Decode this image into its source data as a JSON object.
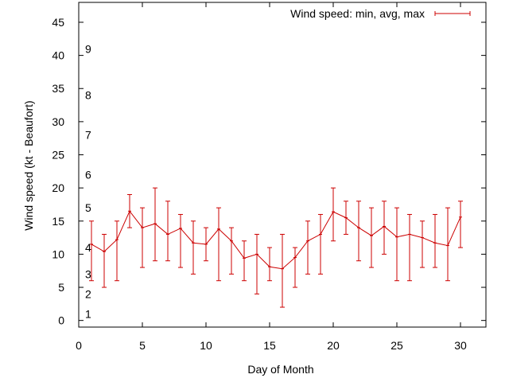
{
  "chart_data": {
    "type": "line",
    "xlabel": "Day of Month",
    "ylabel": "Wind speed (kt - Beaufort)",
    "xlim": [
      0,
      32
    ],
    "ylim": [
      -1,
      48
    ],
    "xticks": [
      0,
      5,
      10,
      15,
      20,
      25,
      30
    ],
    "yticks": [
      0,
      5,
      10,
      15,
      20,
      25,
      30,
      35,
      40,
      45
    ],
    "grid": false,
    "legend_position": "top-right",
    "series": [
      {
        "name": "Wind speed: min, avg, max",
        "color": "#cc0000",
        "x": [
          1,
          2,
          3,
          4,
          5,
          6,
          7,
          8,
          9,
          10,
          11,
          12,
          13,
          14,
          15,
          16,
          17,
          18,
          19,
          20,
          21,
          22,
          23,
          24,
          25,
          26,
          27,
          28,
          29,
          30
        ],
        "y": [
          11.5,
          10.4,
          12.2,
          16.5,
          14,
          14.6,
          13,
          13.9,
          11.7,
          11.5,
          13.8,
          12,
          9.4,
          10,
          8.1,
          7.8,
          9.5,
          12,
          13,
          16.4,
          15.5,
          14,
          12.8,
          14.2,
          12.6,
          13,
          12.5,
          11.7,
          11.3,
          15.6
        ],
        "ymin": [
          6,
          5,
          6,
          14,
          8,
          9,
          9,
          8,
          7,
          9,
          6,
          7,
          6,
          4,
          6,
          2,
          5,
          7,
          7,
          12,
          13,
          9,
          8,
          10,
          6,
          6,
          8,
          8,
          6,
          11
        ],
        "ymax": [
          15,
          13,
          15,
          19,
          17,
          20,
          18,
          16,
          15,
          14,
          17,
          14,
          12,
          13,
          11,
          13,
          11,
          15,
          16,
          20,
          18,
          18,
          17,
          18,
          17,
          16,
          15,
          16,
          17,
          18
        ]
      }
    ],
    "beaufort_labels": [
      {
        "label": "1",
        "y": 1
      },
      {
        "label": "2",
        "y": 4
      },
      {
        "label": "3",
        "y": 7
      },
      {
        "label": "4",
        "y": 11
      },
      {
        "label": "5",
        "y": 17
      },
      {
        "label": "6",
        "y": 22
      },
      {
        "label": "7",
        "y": 28
      },
      {
        "label": "8",
        "y": 34
      },
      {
        "label": "9",
        "y": 41
      }
    ]
  }
}
